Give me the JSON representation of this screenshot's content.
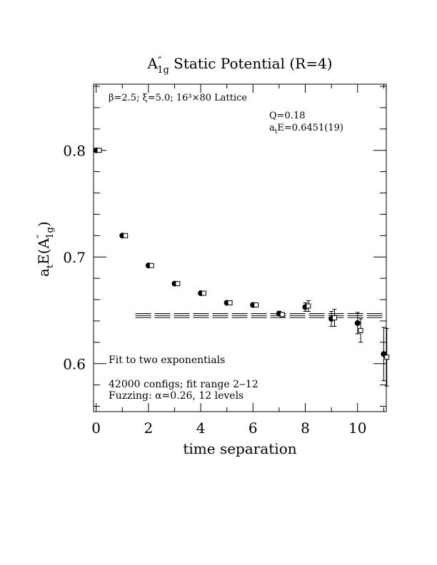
{
  "chart_data": {
    "type": "scatter",
    "title": "A″₁g Static Potential (R=4)",
    "title_parts": {
      "main": "A",
      "prime": "″",
      "sub": "1g",
      "rest": "  Static Potential (R=4)"
    },
    "xlabel": "time separation",
    "ylabel": "aₜE(A″₁g)",
    "ylabel_parts": {
      "a": "a",
      "a_sub": "t",
      "e": "E(A",
      "prime": "″",
      "sub": "1g",
      "close": ")"
    },
    "xlim": [
      -0.1,
      11.1
    ],
    "ylim": [
      0.555,
      0.862
    ],
    "x_ticks": [
      0,
      2,
      4,
      6,
      8,
      10
    ],
    "x_tick_labels": [
      "0",
      "2",
      "4",
      "6",
      "8",
      "10"
    ],
    "y_ticks": [
      0.6,
      0.7,
      0.8
    ],
    "y_tick_labels": [
      "0.6",
      "0.7",
      "0.8"
    ],
    "y_minor_step": 0.02,
    "annotations": {
      "lattice": "β=2.5; ξ=5.0; 16³×80 Lattice",
      "q": "Q=0.18",
      "energy": "aₜE=0.6451(19)",
      "energy_parts": {
        "a": "a",
        "sub": "t",
        "rest": "E=0.6451(19)"
      },
      "fit": "Fit to two exponentials",
      "configs": "42000 configs; fit range 2‒12",
      "fuzzing": "Fuzzing: α=0.26, 12 levels"
    },
    "series": [
      {
        "marker": "filled-circle",
        "x": [
          0,
          1,
          2,
          3,
          4,
          5,
          6,
          7,
          8,
          9,
          10,
          11
        ],
        "y": [
          0.8,
          0.72,
          0.692,
          0.675,
          0.666,
          0.657,
          0.655,
          0.647,
          0.653,
          0.642,
          0.638,
          0.609
        ],
        "err": [
          0.0005,
          0.001,
          0.001,
          0.0012,
          0.0015,
          0.0015,
          0.002,
          0.002,
          0.004,
          0.007,
          0.01,
          0.025
        ]
      },
      {
        "marker": "open-square",
        "x": [
          0.12,
          1.12,
          2.12,
          3.12,
          4.12,
          5.12,
          6.12,
          7.12,
          8.12,
          9.12,
          10.12,
          11.12
        ],
        "y": [
          0.8,
          0.72,
          0.692,
          0.675,
          0.666,
          0.657,
          0.655,
          0.646,
          0.654,
          0.643,
          0.631,
          0.606
        ],
        "err": [
          0.0005,
          0.001,
          0.001,
          0.0012,
          0.0015,
          0.0015,
          0.002,
          0.002,
          0.005,
          0.008,
          0.011,
          0.027
        ]
      }
    ],
    "fit_line": {
      "x_start": 1.5,
      "x_end": 11.1,
      "center": 0.6451,
      "error": 0.0019
    }
  }
}
